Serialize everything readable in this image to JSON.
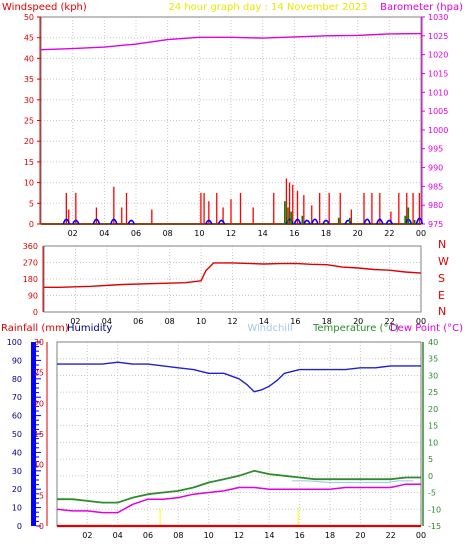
{
  "header": {
    "windspeed_label": "Windspeed (kph)",
    "title": "24 hour graph day : 14 November 2023",
    "barometer_label": "Barometer (hpa)"
  },
  "lower_header": {
    "rainfall_label": "Rainfall (mm)",
    "humidity_label": "Humidity",
    "windchill_label": "Windchill",
    "temperature_label": "Temperature (°C)",
    "dewpoint_label": "Dew Point (°C)"
  },
  "colors": {
    "wind_gust": "#ff0000",
    "wind_avg": "#0000ff",
    "wind_green": "#008000",
    "barometer": "#e000e0",
    "direction": "#e00000",
    "rainfall": "#e00000",
    "humidity": "#2020d0",
    "windchill": "#a8c8e8",
    "temperature": "#2e8b2e",
    "dewpoint": "#e000e0",
    "rain_rate": "#ffff00",
    "title": "#e8e800"
  },
  "chart_data": [
    {
      "type": "line",
      "id": "wind_baro",
      "x_ticks": [
        "02",
        "04",
        "06",
        "08",
        "10",
        "12",
        "14",
        "16",
        "18",
        "20",
        "22",
        "00"
      ],
      "left_axis": {
        "label": "Windspeed (kph)",
        "ticks": [
          0,
          5,
          10,
          15,
          20,
          25,
          30,
          35,
          40,
          45,
          50
        ],
        "ylim": [
          0,
          50
        ]
      },
      "right_axis": {
        "label": "Barometer (hpa)",
        "ticks": [
          975,
          980,
          985,
          990,
          995,
          1000,
          1005,
          1010,
          1015,
          1020,
          1025,
          1030
        ],
        "ylim": [
          975,
          1030
        ]
      },
      "series": [
        {
          "name": "Barometer",
          "axis": "right",
          "x": [
            0,
            2,
            4,
            6,
            8,
            10,
            12,
            14,
            16,
            18,
            20,
            22,
            24
          ],
          "values": [
            1021.3,
            1021.6,
            1022.0,
            1022.8,
            1024.0,
            1024.6,
            1024.6,
            1024.4,
            1024.7,
            1025.0,
            1025.1,
            1025.5,
            1025.6
          ]
        },
        {
          "name": "Gust",
          "axis": "left",
          "x": [
            1.6,
            1.75,
            2.2,
            3.5,
            4.6,
            5.1,
            5.4,
            7.0,
            10.1,
            10.3,
            10.6,
            11.1,
            11.5,
            12.0,
            12.6,
            13.4,
            14.7,
            15.5,
            15.7,
            15.9,
            16.2,
            16.6,
            17.1,
            17.6,
            18.2,
            18.9,
            19.6,
            20.4,
            20.9,
            21.4,
            22.1,
            22.6,
            23.1,
            23.5,
            23.9
          ],
          "values": [
            7.5,
            3.5,
            7.5,
            4,
            9,
            4,
            7.5,
            3.5,
            7.5,
            7.5,
            5.5,
            7.5,
            4,
            6,
            7.5,
            4,
            7.5,
            11,
            10,
            9.5,
            8,
            7,
            4.5,
            7.5,
            7.5,
            7.5,
            3.5,
            7.5,
            7.5,
            7.5,
            3,
            7.5,
            7.5,
            7.5,
            7.5
          ]
        },
        {
          "name": "Average",
          "axis": "left",
          "x": [
            1.6,
            2.2,
            3.5,
            4.6,
            5.7,
            10.6,
            11.4,
            15.7,
            16.2,
            16.8,
            17.3,
            18.0,
            19.4,
            20.6,
            21.4,
            22.0,
            23.2,
            23.9
          ],
          "values": [
            2,
            1.5,
            2,
            2,
            1.5,
            1.5,
            1.5,
            2,
            2,
            1.5,
            2,
            1.5,
            1.5,
            2,
            2,
            1.5,
            2,
            2.5
          ]
        },
        {
          "name": "Green",
          "axis": "left",
          "x": [
            15.4,
            15.6,
            15.8,
            16.5,
            18.8,
            19.5,
            23.0,
            23.2,
            23.6
          ],
          "values": [
            5.5,
            4,
            3,
            2,
            1.5,
            1.5,
            2,
            4,
            1
          ]
        }
      ]
    },
    {
      "type": "line",
      "id": "wind_direction",
      "x_ticks": [
        "02",
        "04",
        "06",
        "08",
        "10",
        "12",
        "14",
        "16",
        "18",
        "20",
        "22",
        "00"
      ],
      "left_axis": {
        "ticks": [
          0,
          90,
          180,
          270,
          360
        ],
        "ylim": [
          0,
          360
        ]
      },
      "right_axis": {
        "ticks": [
          "N",
          "W",
          "S",
          "E",
          "N"
        ]
      },
      "series": [
        {
          "name": "Direction",
          "x": [
            0,
            1,
            3,
            5,
            7,
            9,
            10.0,
            10.3,
            10.8,
            12,
            14,
            15,
            16,
            17,
            18,
            19,
            20,
            21,
            22,
            23,
            24
          ],
          "values": [
            135,
            135,
            140,
            150,
            155,
            160,
            170,
            225,
            268,
            268,
            262,
            264,
            265,
            260,
            258,
            245,
            240,
            232,
            228,
            218,
            212
          ]
        }
      ]
    },
    {
      "type": "line",
      "id": "temp_hum_rain",
      "x_ticks": [
        "02",
        "04",
        "06",
        "08",
        "10",
        "12",
        "14",
        "16",
        "18",
        "20",
        "22",
        "00"
      ],
      "humidity_axis": {
        "label": "Humidity",
        "ticks": [
          0,
          10,
          20,
          30,
          40,
          50,
          60,
          70,
          80,
          90,
          100
        ],
        "ylim": [
          0,
          100
        ]
      },
      "rainfall_axis": {
        "label": "Rainfall (mm)",
        "ticks": [
          0,
          5,
          10,
          15,
          20,
          25,
          30
        ],
        "ylim": [
          0,
          30
        ]
      },
      "temperature_axis": {
        "label": "Temperature (°C)",
        "ticks": [
          -15,
          -10,
          -5,
          0,
          5,
          10,
          15,
          20,
          25,
          30,
          35,
          40
        ],
        "ylim": [
          -15,
          40
        ]
      },
      "series": [
        {
          "name": "Humidity",
          "axis": "humidity",
          "x": [
            0,
            2,
            3,
            4,
            5,
            6,
            7,
            8,
            9,
            10,
            11,
            12,
            12.5,
            13,
            13.5,
            14,
            14.5,
            15,
            16,
            17,
            18,
            19,
            20,
            21,
            22,
            23,
            24
          ],
          "values": [
            88,
            88,
            88,
            89,
            88,
            88,
            87,
            86,
            85,
            83,
            83,
            80,
            77,
            73,
            74,
            76,
            79,
            83,
            85,
            85,
            85,
            85,
            86,
            86,
            87,
            87,
            87
          ]
        },
        {
          "name": "Temperature",
          "axis": "temperature",
          "x": [
            0,
            1,
            2,
            3,
            4,
            5,
            6,
            7,
            8,
            9,
            10,
            11,
            12,
            13,
            13.5,
            14,
            15,
            16,
            17,
            18,
            19,
            20,
            21,
            22,
            23,
            24
          ],
          "values": [
            -7,
            -7,
            -7.5,
            -8,
            -8,
            -6.5,
            -5.5,
            -5,
            -4.5,
            -3.5,
            -2,
            -1,
            0,
            1.5,
            1,
            0.5,
            0,
            -0.5,
            -1,
            -1,
            -1,
            -1,
            -1,
            -1,
            -0.5,
            -0.5
          ]
        },
        {
          "name": "Dew Point",
          "axis": "temperature",
          "x": [
            0,
            1,
            2,
            3,
            4,
            5,
            6,
            7,
            8,
            9,
            10,
            11,
            12,
            13,
            14,
            15,
            16,
            17,
            18,
            19,
            20,
            21,
            22,
            23,
            24
          ],
          "values": [
            -10,
            -10.5,
            -10.5,
            -11,
            -11,
            -8.5,
            -7,
            -7,
            -6.5,
            -5.5,
            -5,
            -4.5,
            -3.5,
            -3.5,
            -4,
            -4,
            -4,
            -4,
            -4,
            -3.5,
            -3.5,
            -3.5,
            -3.5,
            -2.5,
            -2.5
          ]
        },
        {
          "name": "Windchill",
          "axis": "temperature",
          "x": [
            15.5,
            16.5,
            18,
            20,
            21.8,
            22.5,
            23.5
          ],
          "values": [
            -1.5,
            -1.5,
            -2,
            -2,
            -2,
            -1.5,
            -1.5
          ]
        },
        {
          "name": "Rain rate",
          "axis": "rainfall",
          "x": [
            6.8,
            15.9
          ],
          "values": [
            3,
            3
          ]
        },
        {
          "name": "Rainfall",
          "axis": "rainfall",
          "x": [
            0,
            24
          ],
          "values": [
            0,
            0
          ]
        }
      ]
    }
  ]
}
